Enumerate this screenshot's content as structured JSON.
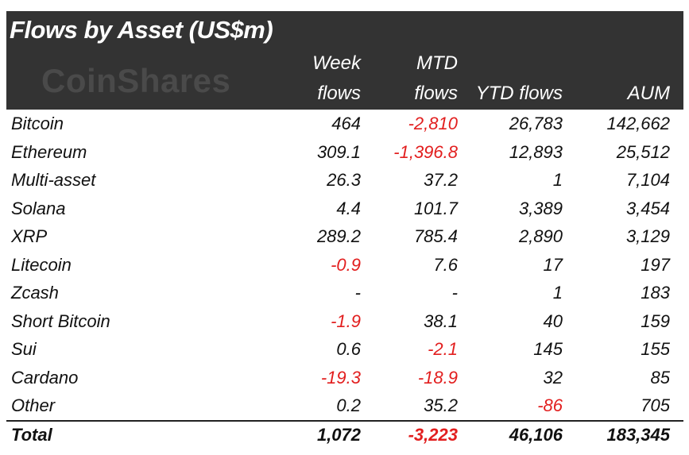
{
  "chart_data": {
    "type": "table",
    "title": "Flows by Asset (US$m)",
    "brand": "CoinShares",
    "columns": [
      {
        "line1": "Week",
        "line2": "flows"
      },
      {
        "line1": "MTD",
        "line2": "flows"
      },
      {
        "line1": "",
        "line2": "YTD flows"
      },
      {
        "line1": "",
        "line2": "AUM"
      }
    ],
    "rows": [
      {
        "name": "Bitcoin",
        "values": [
          "464",
          "-2,810",
          "26,783",
          "142,662"
        ]
      },
      {
        "name": "Ethereum",
        "values": [
          "309.1",
          "-1,396.8",
          "12,893",
          "25,512"
        ]
      },
      {
        "name": "Multi-asset",
        "values": [
          "26.3",
          "37.2",
          "1",
          "7,104"
        ]
      },
      {
        "name": "Solana",
        "values": [
          "4.4",
          "101.7",
          "3,389",
          "3,454"
        ]
      },
      {
        "name": "XRP",
        "values": [
          "289.2",
          "785.4",
          "2,890",
          "3,129"
        ]
      },
      {
        "name": "Litecoin",
        "values": [
          "-0.9",
          "7.6",
          "17",
          "197"
        ]
      },
      {
        "name": "Zcash",
        "values": [
          "-",
          "-",
          "1",
          "183"
        ]
      },
      {
        "name": "Short Bitcoin",
        "values": [
          "-1.9",
          "38.1",
          "40",
          "159"
        ]
      },
      {
        "name": "Sui",
        "values": [
          "0.6",
          "-2.1",
          "145",
          "155"
        ]
      },
      {
        "name": "Cardano",
        "values": [
          "-19.3",
          "-18.9",
          "32",
          "85"
        ]
      },
      {
        "name": "Other",
        "values": [
          "0.2",
          "35.2",
          "-86",
          "705"
        ]
      }
    ],
    "total": {
      "name": "Total",
      "values": [
        "1,072",
        "-3,223",
        "46,106",
        "183,345"
      ]
    },
    "colors": {
      "header_bg": "#333333",
      "negative": "#e21e1e",
      "text": "#111111"
    }
  }
}
